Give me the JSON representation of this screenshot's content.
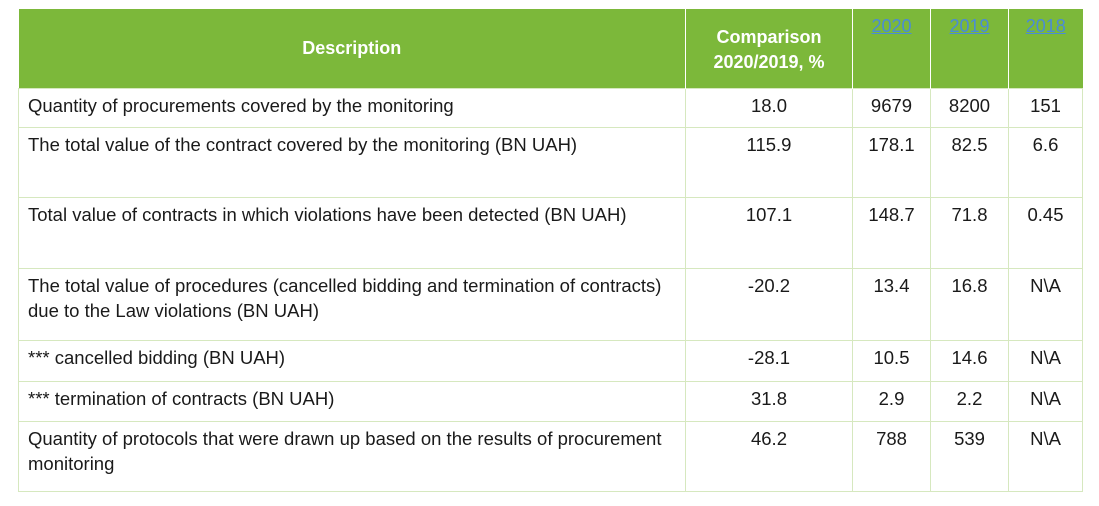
{
  "table": {
    "headers": {
      "description": "Description",
      "comparison_line1": "Comparison",
      "comparison_line2": "2020/2019, %",
      "y2020": "2020",
      "y2019": "2019",
      "y2018": "2018"
    },
    "colors": {
      "header_bg": "#7cb83a",
      "header_text": "#ffffff",
      "year_link": "#4a8bd8",
      "border": "#d6e8bf"
    },
    "rows": [
      {
        "description": "Quantity of procurements covered by the monitoring",
        "comparison": "18.0",
        "y2020": "9679",
        "y2019": "8200",
        "y2018": "151"
      },
      {
        "description": "The total value of the contract covered by the monitoring (BN UAH)",
        "comparison": "115.9",
        "y2020": "178.1",
        "y2019": "82.5",
        "y2018": "6.6"
      },
      {
        "description": "Total value of contracts in which violations have been detected (BN UAH)",
        "comparison": "107.1",
        "y2020": "148.7",
        "y2019": "71.8",
        "y2018": "0.45"
      },
      {
        "description": "The total value of procedures (cancelled bidding and termination of contracts) due to the Law violations (BN UAH)",
        "comparison": "-20.2",
        "y2020": "13.4",
        "y2019": "16.8",
        "y2018": "N\\A"
      },
      {
        "description": "*** cancelled bidding (BN UAH)",
        "comparison": "-28.1",
        "y2020": "10.5",
        "y2019": "14.6",
        "y2018": "N\\A"
      },
      {
        "description": "*** termination of contracts (BN UAH)",
        "comparison": "31.8",
        "y2020": "2.9",
        "y2019": "2.2",
        "y2018": "N\\A"
      },
      {
        "description": "Quantity of protocols that were drawn up based on the results of procurement monitoring",
        "comparison": "46.2",
        "y2020": "788",
        "y2019": "539",
        "y2018": "N\\A"
      }
    ]
  }
}
